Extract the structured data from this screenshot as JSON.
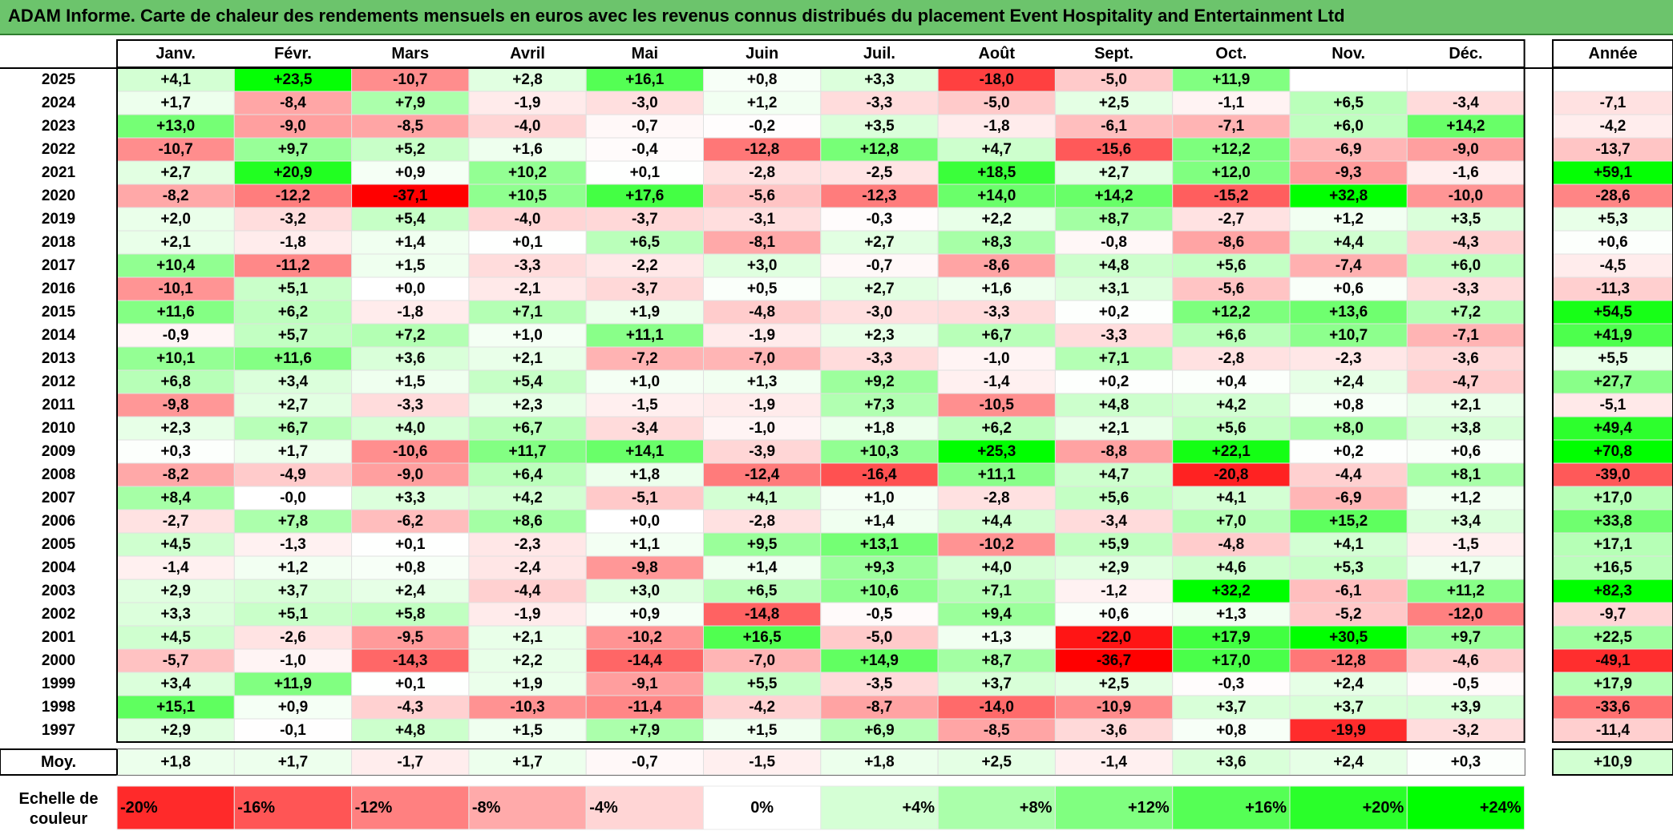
{
  "title": "ADAM Informe. Carte de chaleur des rendements mensuels en euros avec les revenus connus distribués du placement Event Hospitality and Entertainment Ltd",
  "chart_data": {
    "type": "heatmap",
    "title": "ADAM Informe. Carte de chaleur des rendements mensuels en euros avec les revenus connus distribués du placement Event Hospitality and Entertainment Ltd",
    "months": [
      "Janv.",
      "Févr.",
      "Mars",
      "Avril",
      "Mai",
      "Juin",
      "Juil.",
      "Août",
      "Sept.",
      "Oct.",
      "Nov.",
      "Déc."
    ],
    "year_header": "Année",
    "rows": [
      {
        "year": "2025",
        "values": [
          "+4,1",
          "+23,5",
          "-10,7",
          "+2,8",
          "+16,1",
          "+0,8",
          "+3,3",
          "-18,0",
          "-5,0",
          "+11,9",
          "",
          ""
        ],
        "annual": ""
      },
      {
        "year": "2024",
        "values": [
          "+1,7",
          "-8,4",
          "+7,9",
          "-1,9",
          "-3,0",
          "+1,2",
          "-3,3",
          "-5,0",
          "+2,5",
          "-1,1",
          "+6,5",
          "-3,4"
        ],
        "annual": "-7,1"
      },
      {
        "year": "2023",
        "values": [
          "+13,0",
          "-9,0",
          "-8,5",
          "-4,0",
          "-0,7",
          "-0,2",
          "+3,5",
          "-1,8",
          "-6,1",
          "-7,1",
          "+6,0",
          "+14,2"
        ],
        "annual": "-4,2"
      },
      {
        "year": "2022",
        "values": [
          "-10,7",
          "+9,7",
          "+5,2",
          "+1,6",
          "-0,4",
          "-12,8",
          "+12,8",
          "+4,7",
          "-15,6",
          "+12,2",
          "-6,9",
          "-9,0"
        ],
        "annual": "-13,7"
      },
      {
        "year": "2021",
        "values": [
          "+2,7",
          "+20,9",
          "+0,9",
          "+10,2",
          "+0,1",
          "-2,8",
          "-2,5",
          "+18,5",
          "+2,7",
          "+12,0",
          "-9,3",
          "-1,6"
        ],
        "annual": "+59,1"
      },
      {
        "year": "2020",
        "values": [
          "-8,2",
          "-12,2",
          "-37,1",
          "+10,5",
          "+17,6",
          "-5,6",
          "-12,3",
          "+14,0",
          "+14,2",
          "-15,2",
          "+32,8",
          "-10,0"
        ],
        "annual": "-28,6"
      },
      {
        "year": "2019",
        "values": [
          "+2,0",
          "-3,2",
          "+5,4",
          "-4,0",
          "-3,7",
          "-3,1",
          "-0,3",
          "+2,2",
          "+8,7",
          "-2,7",
          "+1,2",
          "+3,5"
        ],
        "annual": "+5,3"
      },
      {
        "year": "2018",
        "values": [
          "+2,1",
          "-1,8",
          "+1,4",
          "+0,1",
          "+6,5",
          "-8,1",
          "+2,7",
          "+8,3",
          "-0,8",
          "-8,6",
          "+4,4",
          "-4,3"
        ],
        "annual": "+0,6"
      },
      {
        "year": "2017",
        "values": [
          "+10,4",
          "-11,2",
          "+1,5",
          "-3,3",
          "-2,2",
          "+3,0",
          "-0,7",
          "-8,6",
          "+4,8",
          "+5,6",
          "-7,4",
          "+6,0"
        ],
        "annual": "-4,5"
      },
      {
        "year": "2016",
        "values": [
          "-10,1",
          "+5,1",
          "+0,0",
          "-2,1",
          "-3,7",
          "+0,5",
          "+2,7",
          "+1,6",
          "+3,1",
          "-5,6",
          "+0,6",
          "-3,3"
        ],
        "annual": "-11,3"
      },
      {
        "year": "2015",
        "values": [
          "+11,6",
          "+6,2",
          "-1,8",
          "+7,1",
          "+1,9",
          "-4,8",
          "-3,0",
          "-3,3",
          "+0,2",
          "+12,2",
          "+13,6",
          "+7,2"
        ],
        "annual": "+54,5"
      },
      {
        "year": "2014",
        "values": [
          "-0,9",
          "+5,7",
          "+7,2",
          "+1,0",
          "+11,1",
          "-1,9",
          "+2,3",
          "+6,7",
          "-3,3",
          "+6,6",
          "+10,7",
          "-7,1"
        ],
        "annual": "+41,9"
      },
      {
        "year": "2013",
        "values": [
          "+10,1",
          "+11,6",
          "+3,6",
          "+2,1",
          "-7,2",
          "-7,0",
          "-3,3",
          "-1,0",
          "+7,1",
          "-2,8",
          "-2,3",
          "-3,6"
        ],
        "annual": "+5,5"
      },
      {
        "year": "2012",
        "values": [
          "+6,8",
          "+3,4",
          "+1,5",
          "+5,4",
          "+1,0",
          "+1,3",
          "+9,2",
          "-1,4",
          "+0,2",
          "+0,4",
          "+2,4",
          "-4,7"
        ],
        "annual": "+27,7"
      },
      {
        "year": "2011",
        "values": [
          "-9,8",
          "+2,7",
          "-3,3",
          "+2,3",
          "-1,5",
          "-1,9",
          "+7,3",
          "-10,5",
          "+4,8",
          "+4,2",
          "+0,8",
          "+2,1"
        ],
        "annual": "-5,1"
      },
      {
        "year": "2010",
        "values": [
          "+2,3",
          "+6,7",
          "+4,0",
          "+6,7",
          "-3,4",
          "-1,0",
          "+1,8",
          "+6,2",
          "+2,1",
          "+5,6",
          "+8,0",
          "+3,8"
        ],
        "annual": "+49,4"
      },
      {
        "year": "2009",
        "values": [
          "+0,3",
          "+1,7",
          "-10,6",
          "+11,7",
          "+14,1",
          "-3,9",
          "+10,3",
          "+25,3",
          "-8,8",
          "+22,1",
          "+0,2",
          "+0,6"
        ],
        "annual": "+70,8"
      },
      {
        "year": "2008",
        "values": [
          "-8,2",
          "-4,9",
          "-9,0",
          "+6,4",
          "+1,8",
          "-12,4",
          "-16,4",
          "+11,1",
          "+4,7",
          "-20,8",
          "-4,4",
          "+8,1"
        ],
        "annual": "-39,0"
      },
      {
        "year": "2007",
        "values": [
          "+8,4",
          "-0,0",
          "+3,3",
          "+4,2",
          "-5,1",
          "+4,1",
          "+1,0",
          "-2,8",
          "+5,6",
          "+4,1",
          "-6,9",
          "+1,2"
        ],
        "annual": "+17,0"
      },
      {
        "year": "2006",
        "values": [
          "-2,7",
          "+7,8",
          "-6,2",
          "+8,6",
          "+0,0",
          "-2,8",
          "+1,4",
          "+4,4",
          "-3,4",
          "+7,0",
          "+15,2",
          "+3,4"
        ],
        "annual": "+33,8"
      },
      {
        "year": "2005",
        "values": [
          "+4,5",
          "-1,3",
          "+0,1",
          "-2,3",
          "+1,1",
          "+9,5",
          "+13,1",
          "-10,2",
          "+5,9",
          "-4,8",
          "+4,1",
          "-1,5"
        ],
        "annual": "+17,1"
      },
      {
        "year": "2004",
        "values": [
          "-1,4",
          "+1,2",
          "+0,8",
          "-2,4",
          "-9,8",
          "+1,4",
          "+9,3",
          "+4,0",
          "+2,9",
          "+4,6",
          "+5,3",
          "+1,7"
        ],
        "annual": "+16,5"
      },
      {
        "year": "2003",
        "values": [
          "+2,9",
          "+3,7",
          "+2,4",
          "-4,4",
          "+3,0",
          "+6,5",
          "+10,6",
          "+7,1",
          "-1,2",
          "+32,2",
          "-6,1",
          "+11,2"
        ],
        "annual": "+82,3"
      },
      {
        "year": "2002",
        "values": [
          "+3,3",
          "+5,1",
          "+5,8",
          "-1,9",
          "+0,9",
          "-14,8",
          "-0,5",
          "+9,4",
          "+0,6",
          "+1,3",
          "-5,2",
          "-12,0"
        ],
        "annual": "-9,7"
      },
      {
        "year": "2001",
        "values": [
          "+4,5",
          "-2,6",
          "-9,5",
          "+2,1",
          "-10,2",
          "+16,5",
          "-5,0",
          "+1,3",
          "-22,0",
          "+17,9",
          "+30,5",
          "+9,7"
        ],
        "annual": "+22,5"
      },
      {
        "year": "2000",
        "values": [
          "-5,7",
          "-1,0",
          "-14,3",
          "+2,2",
          "-14,4",
          "-7,0",
          "+14,9",
          "+8,7",
          "-36,7",
          "+17,0",
          "-12,8",
          "-4,6"
        ],
        "annual": "-49,1"
      },
      {
        "year": "1999",
        "values": [
          "+3,4",
          "+11,9",
          "+0,1",
          "+1,9",
          "-9,1",
          "+5,5",
          "-3,5",
          "+3,7",
          "+2,5",
          "-0,3",
          "+2,4",
          "-0,5"
        ],
        "annual": "+17,9"
      },
      {
        "year": "1998",
        "values": [
          "+15,1",
          "+0,9",
          "-4,3",
          "-10,3",
          "-11,4",
          "-4,2",
          "-8,7",
          "-14,0",
          "-10,9",
          "+3,7",
          "+3,7",
          "+3,9"
        ],
        "annual": "-33,6"
      },
      {
        "year": "1997",
        "values": [
          "+2,9",
          "-0,1",
          "+4,8",
          "+1,5",
          "+7,9",
          "+1,5",
          "+6,9",
          "-8,5",
          "-3,6",
          "+0,8",
          "-19,9",
          "-3,2"
        ],
        "annual": "-11,4"
      }
    ],
    "average": {
      "label": "Moy.",
      "values": [
        "+1,8",
        "+1,7",
        "-1,7",
        "+1,7",
        "-0,7",
        "-1,5",
        "+1,8",
        "+2,5",
        "-1,4",
        "+3,6",
        "+2,4",
        "+0,3"
      ],
      "annual": "+10,9"
    },
    "scale": {
      "label_line1": "Echelle de",
      "label_line2": "couleur",
      "stops": [
        "-20%",
        "-16%",
        "-12%",
        "-8%",
        "-4%",
        "0%",
        "+4%",
        "+8%",
        "+12%",
        "+16%",
        "+20%",
        "+24%"
      ],
      "stop_values": [
        -20,
        -16,
        -12,
        -8,
        -4,
        0,
        4,
        8,
        12,
        16,
        20,
        24
      ]
    },
    "colors": {
      "negative": "#ff0000",
      "positive": "#00ff00",
      "neutral": "#ffffff",
      "title_bar": "#6cc46c"
    }
  }
}
